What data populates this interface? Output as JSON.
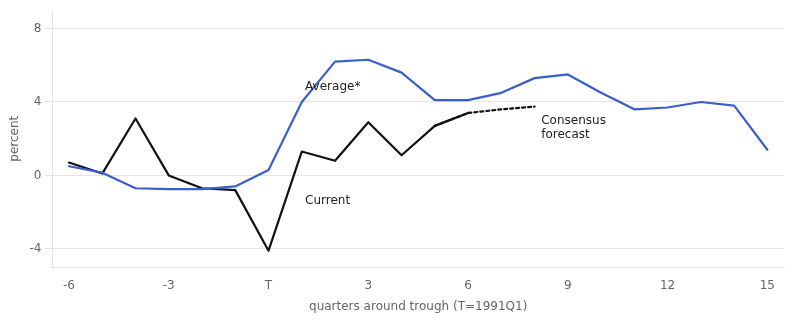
{
  "chart_data": {
    "type": "line",
    "xlabel": "quarters around trough (T=1991Q1)",
    "ylabel": "percent",
    "xlim": [
      -6.5,
      15.5
    ],
    "xticks": [
      -6,
      -3,
      {
        "value": 0,
        "label": "T"
      },
      3,
      6,
      9,
      12,
      15
    ],
    "ylim": [
      -5,
      9
    ],
    "yticks": [
      -4,
      0,
      4,
      8
    ],
    "grid": "y",
    "series": [
      {
        "color": "#3a5fcd",
        "line_style": "solid",
        "x": [
          -6,
          -5,
          -4,
          -3,
          -2,
          -1,
          0,
          1,
          2,
          3,
          4,
          5,
          6,
          7,
          8,
          9,
          10,
          11,
          12,
          13,
          14,
          15
        ],
        "values": [
          0.5,
          0.15,
          -0.7,
          -0.75,
          -0.75,
          -0.6,
          0.3,
          4.0,
          6.2,
          6.3,
          5.6,
          4.1,
          4.1,
          4.5,
          5.3,
          5.5,
          4.5,
          3.6,
          3.7,
          4.0,
          3.8,
          1.4
        ]
      },
      {
        "color": "#111111",
        "line_style": "solid",
        "x": [
          -6,
          -5,
          -4,
          -3,
          -2,
          -1,
          0,
          1,
          2,
          3,
          4,
          5,
          6
        ],
        "values": [
          0.7,
          0.1,
          3.1,
          0.0,
          -0.7,
          -0.8,
          -4.1,
          1.3,
          0.8,
          2.9,
          1.1,
          2.7,
          3.4
        ]
      },
      {
        "color": "#111111",
        "line_style": "dotted",
        "x": [
          5,
          6,
          7,
          8
        ],
        "values": [
          2.7,
          3.4,
          3.6,
          3.75
        ]
      }
    ],
    "annotations": [
      {
        "text": "Average*",
        "x": 1.1,
        "y": 4.8
      },
      {
        "text": "Current",
        "x": 1.1,
        "y": -1.4
      },
      {
        "text": "Consensus\nforecast",
        "x": 8.2,
        "y": 2.6
      }
    ]
  }
}
